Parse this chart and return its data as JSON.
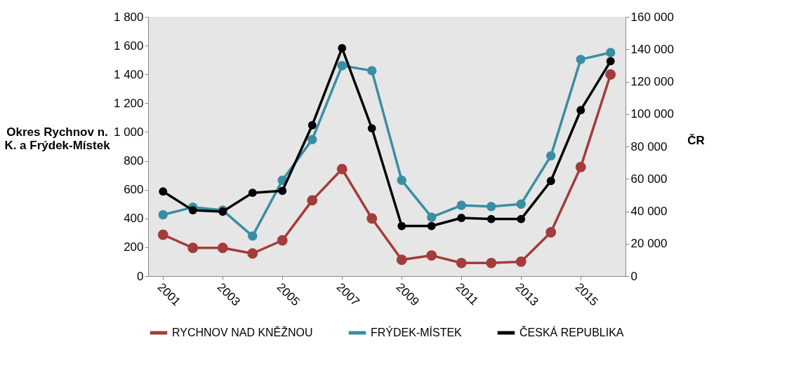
{
  "chart_data": {
    "type": "line",
    "ylabel": "Okres Rychnov n. K. a Frýdek-Místek",
    "y2label": "ČR",
    "categories": [
      "2001",
      null,
      "2003",
      null,
      "2005",
      null,
      "2007",
      null,
      "2009",
      null,
      "2011",
      null,
      "2013",
      null,
      "2015",
      null
    ],
    "series": [
      {
        "name": "RYCHNOV NAD KNĚŽNOU",
        "color": "#a33c3a",
        "values": [
          287,
          196,
          196,
          157,
          248,
          526,
          743,
          400,
          113,
          143,
          91,
          91,
          100,
          304,
          757,
          1400
        ]
      },
      {
        "name": "FRÝDEK-MÍSTEK",
        "color": "#3a8ea3",
        "values": [
          426,
          478,
          457,
          278,
          665,
          948,
          1461,
          1426,
          665,
          409,
          491,
          483,
          500,
          835,
          1504,
          1552
        ]
      },
      {
        "name": "ČESKÁ REPUBLIKA",
        "color": "#000000",
        "axis": "y2",
        "values": [
          52200,
          40600,
          39800,
          51400,
          52600,
          93100,
          140700,
          91200,
          30900,
          30900,
          35900,
          35200,
          35200,
          58700,
          102400,
          132600
        ]
      }
    ],
    "ylim": [
      0,
      1800
    ],
    "yticks": [
      0,
      200,
      400,
      600,
      800,
      {
        "value": 1000,
        "label": "1 000"
      },
      {
        "value": 1200,
        "label": "1 200"
      },
      {
        "value": 1400,
        "label": "1 400"
      },
      {
        "value": 1600,
        "label": "1 600"
      },
      {
        "value": 1800,
        "label": "1 800"
      }
    ],
    "y2lim": [
      0,
      160000
    ],
    "y2ticks": [
      0,
      {
        "value": 20000,
        "label": "20 000"
      },
      {
        "value": 40000,
        "label": "40 000"
      },
      {
        "value": 60000,
        "label": "60 000"
      },
      {
        "value": 80000,
        "label": "80 000"
      },
      {
        "value": 100000,
        "label": "100 000"
      },
      {
        "value": 120000,
        "label": "120 000"
      },
      {
        "value": 140000,
        "label": "140 000"
      },
      {
        "value": 160000,
        "label": "160 000"
      }
    ],
    "grid": false,
    "legend": "bottom",
    "marker": "circle",
    "line_style": "solid"
  }
}
